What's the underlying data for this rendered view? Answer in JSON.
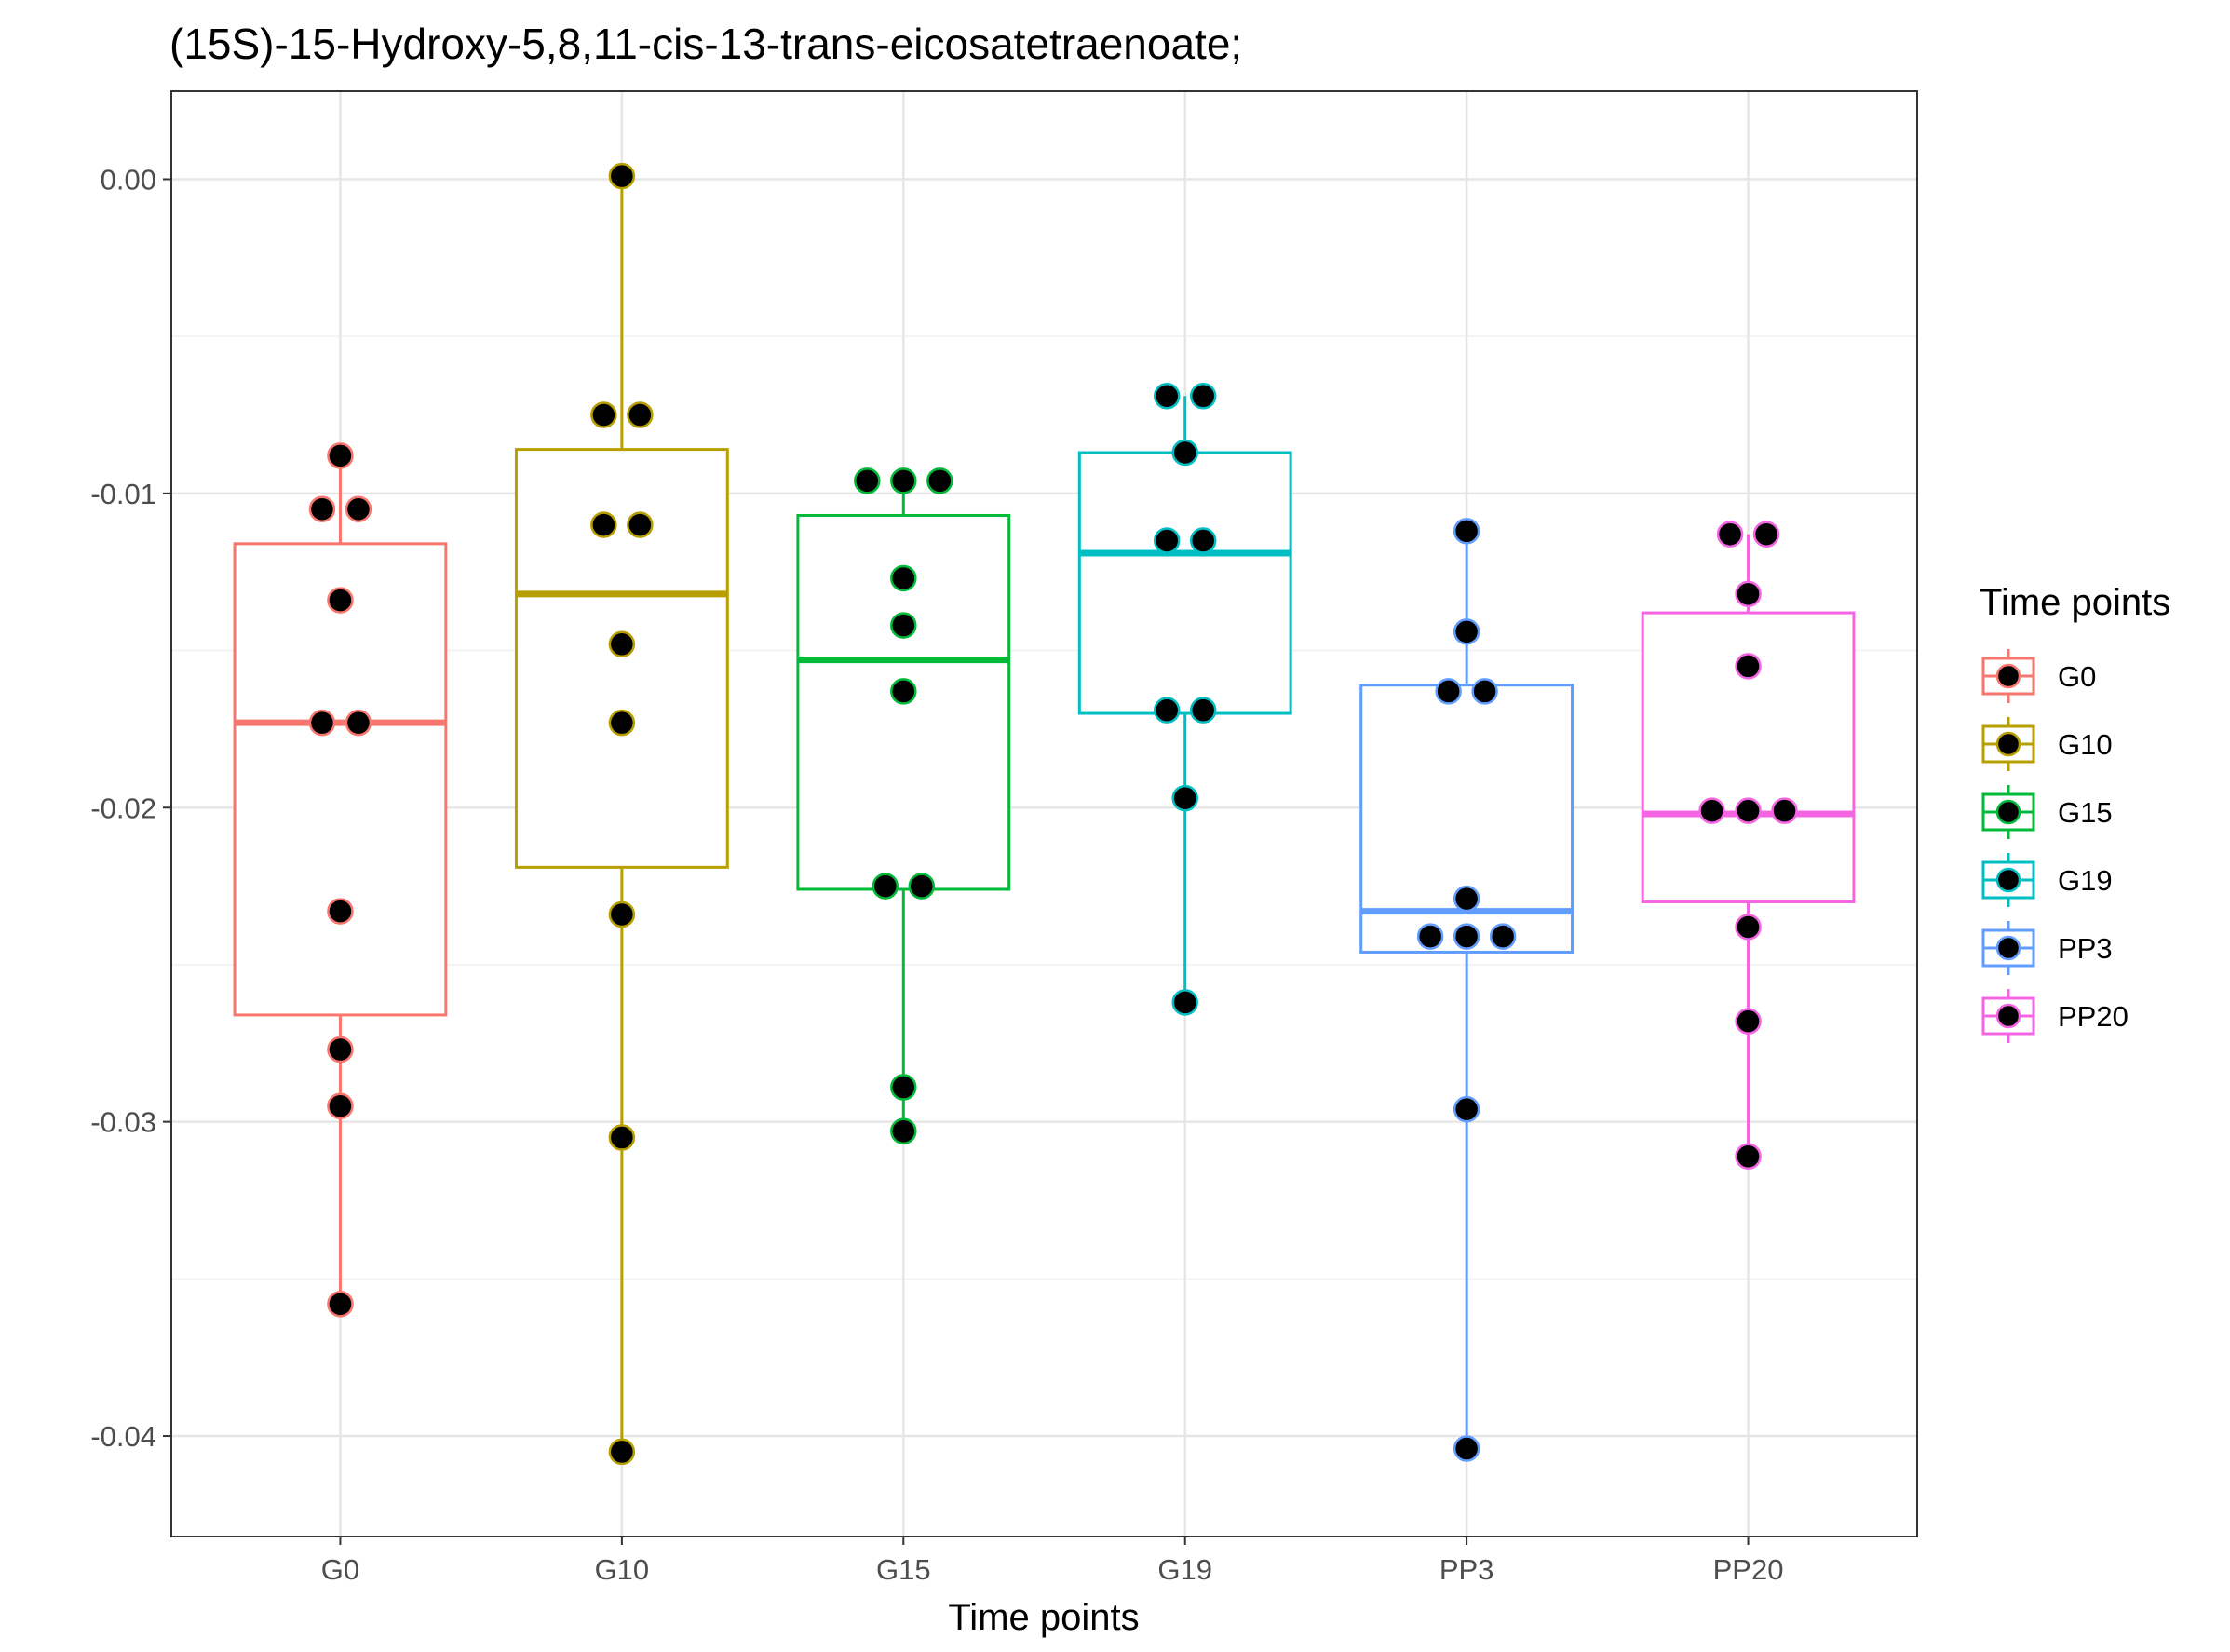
{
  "chart_data": {
    "type": "box",
    "title": "(15S)-15-Hydroxy-5,8,11-cis-13-trans-eicosatetraenoate;",
    "xlabel": "Time points",
    "ylabel": "",
    "categories": [
      "G0",
      "G10",
      "G15",
      "G19",
      "PP3",
      "PP20"
    ],
    "ylim": [
      -0.0432,
      0.0028
    ],
    "yticks": [
      0.0,
      -0.01,
      -0.02,
      -0.03,
      -0.04
    ],
    "ytick_labels": [
      "0.00",
      "-0.01",
      "-0.02",
      "-0.03",
      "-0.04"
    ],
    "grid": true,
    "legend": {
      "title": "Time points",
      "position": "right",
      "entries": [
        "G0",
        "G10",
        "G15",
        "G19",
        "PP3",
        "PP20"
      ]
    },
    "series": [
      {
        "category": "G0",
        "color": "#F8766D",
        "box": {
          "q1": -0.0266,
          "median": -0.0173,
          "q3": -0.0116,
          "whisker_low": -0.0358,
          "whisker_high": -0.0088
        },
        "points": [
          {
            "y": -0.0088,
            "offset": 0
          },
          {
            "y": -0.0105,
            "offset": -1
          },
          {
            "y": -0.0105,
            "offset": 1
          },
          {
            "y": -0.0134,
            "offset": 0
          },
          {
            "y": -0.0173,
            "offset": -1
          },
          {
            "y": -0.0173,
            "offset": 1
          },
          {
            "y": -0.0233,
            "offset": 0
          },
          {
            "y": -0.0277,
            "offset": 0
          },
          {
            "y": -0.0295,
            "offset": 0
          },
          {
            "y": -0.0358,
            "offset": 0
          }
        ]
      },
      {
        "category": "G10",
        "color": "#B79F00",
        "box": {
          "q1": -0.0219,
          "median": -0.0132,
          "q3": -0.0086,
          "whisker_low": -0.0405,
          "whisker_high": 0.0001
        },
        "points": [
          {
            "y": 0.0001,
            "offset": 0
          },
          {
            "y": -0.0075,
            "offset": -1
          },
          {
            "y": -0.0075,
            "offset": 1
          },
          {
            "y": -0.011,
            "offset": -1
          },
          {
            "y": -0.011,
            "offset": 1
          },
          {
            "y": -0.0148,
            "offset": 0
          },
          {
            "y": -0.0173,
            "offset": 0
          },
          {
            "y": -0.0234,
            "offset": 0
          },
          {
            "y": -0.0305,
            "offset": 0
          },
          {
            "y": -0.0405,
            "offset": 0
          }
        ]
      },
      {
        "category": "G15",
        "color": "#00BA38",
        "box": {
          "q1": -0.0226,
          "median": -0.0153,
          "q3": -0.0107,
          "whisker_low": -0.0303,
          "whisker_high": -0.0096
        },
        "points": [
          {
            "y": -0.0096,
            "offset": -2
          },
          {
            "y": -0.0096,
            "offset": 0
          },
          {
            "y": -0.0096,
            "offset": 2
          },
          {
            "y": -0.0127,
            "offset": 0
          },
          {
            "y": -0.0142,
            "offset": 0
          },
          {
            "y": -0.0163,
            "offset": 0
          },
          {
            "y": -0.0225,
            "offset": -1
          },
          {
            "y": -0.0225,
            "offset": 1
          },
          {
            "y": -0.0289,
            "offset": 0
          },
          {
            "y": -0.0303,
            "offset": 0
          }
        ]
      },
      {
        "category": "G19",
        "color": "#00BFC4",
        "box": {
          "q1": -0.017,
          "median": -0.0119,
          "q3": -0.0087,
          "whisker_low": -0.0262,
          "whisker_high": -0.0069
        },
        "points": [
          {
            "y": -0.0069,
            "offset": -1
          },
          {
            "y": -0.0069,
            "offset": 1
          },
          {
            "y": -0.0087,
            "offset": 0
          },
          {
            "y": -0.0115,
            "offset": -1
          },
          {
            "y": -0.0115,
            "offset": 1
          },
          {
            "y": -0.0169,
            "offset": -1
          },
          {
            "y": -0.0169,
            "offset": 1
          },
          {
            "y": -0.0197,
            "offset": 0
          },
          {
            "y": -0.0262,
            "offset": 0
          }
        ]
      },
      {
        "category": "PP3",
        "color": "#619CFF",
        "box": {
          "q1": -0.0246,
          "median": -0.0233,
          "q3": -0.0161,
          "whisker_low": -0.0404,
          "whisker_high": -0.0112
        },
        "points": [
          {
            "y": -0.0112,
            "offset": 0
          },
          {
            "y": -0.0144,
            "offset": 0
          },
          {
            "y": -0.0163,
            "offset": -1
          },
          {
            "y": -0.0163,
            "offset": 1
          },
          {
            "y": -0.0229,
            "offset": 0
          },
          {
            "y": -0.0241,
            "offset": -2
          },
          {
            "y": -0.0241,
            "offset": 0
          },
          {
            "y": -0.0241,
            "offset": 2
          },
          {
            "y": -0.0296,
            "offset": 0
          },
          {
            "y": -0.0404,
            "offset": 0
          }
        ]
      },
      {
        "category": "PP20",
        "color": "#F564E3",
        "box": {
          "q1": -0.023,
          "median": -0.0202,
          "q3": -0.0138,
          "whisker_low": -0.0311,
          "whisker_high": -0.0113
        },
        "points": [
          {
            "y": -0.0113,
            "offset": -1
          },
          {
            "y": -0.0113,
            "offset": 1
          },
          {
            "y": -0.0132,
            "offset": 0
          },
          {
            "y": -0.0155,
            "offset": 0
          },
          {
            "y": -0.0201,
            "offset": -2
          },
          {
            "y": -0.0201,
            "offset": 0
          },
          {
            "y": -0.0201,
            "offset": 2
          },
          {
            "y": -0.0238,
            "offset": 0
          },
          {
            "y": -0.0268,
            "offset": 0
          },
          {
            "y": -0.0311,
            "offset": 0
          }
        ]
      }
    ]
  }
}
